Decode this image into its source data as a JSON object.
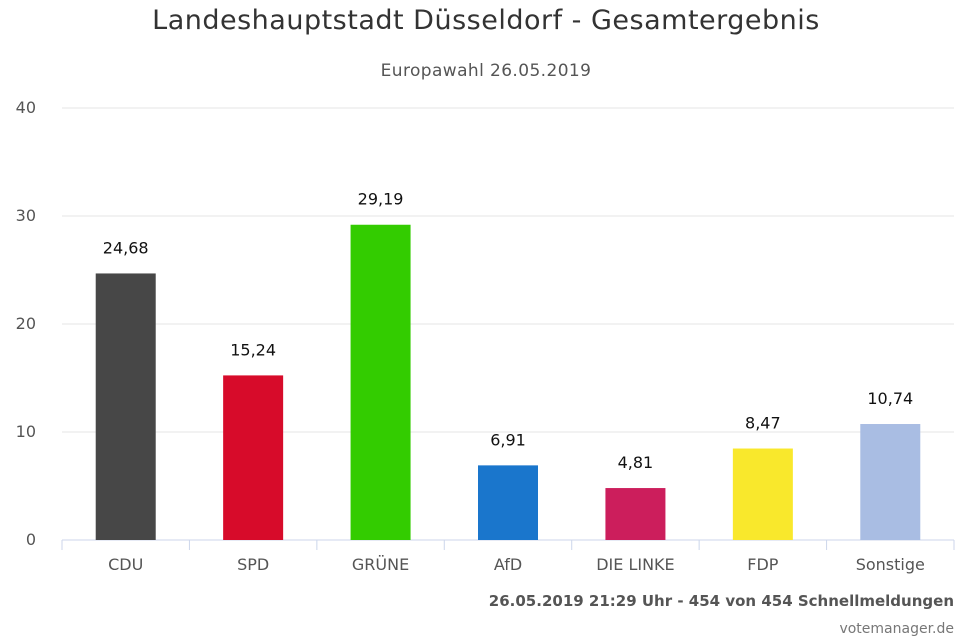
{
  "chart_data": {
    "type": "bar",
    "title": "Landeshauptstadt Düsseldorf - Gesamtergebnis",
    "subtitle": "Europawahl 26.05.2019",
    "categories": [
      "CDU",
      "SPD",
      "GRÜNE",
      "AfD",
      "DIE LINKE",
      "FDP",
      "Sonstige"
    ],
    "values": [
      24.68,
      15.24,
      29.19,
      6.91,
      4.81,
      8.47,
      10.74
    ],
    "value_labels": [
      "24,68",
      "15,24",
      "29,19",
      "6,91",
      "4,81",
      "8,47",
      "10,74"
    ],
    "colors": [
      "#474747",
      "#d70b2a",
      "#33cc00",
      "#1a76cc",
      "#cc1e5c",
      "#f9e82c",
      "#a9bde3"
    ],
    "ylim": [
      0,
      40
    ],
    "yticks": [
      "0",
      "10",
      "20",
      "30",
      "40"
    ],
    "ytick_values": [
      0,
      10,
      20,
      30,
      40
    ],
    "grid": true,
    "xlabel": "",
    "ylabel": ""
  },
  "footer": {
    "status": "26.05.2019 21:29 Uhr - 454 von 454 Schnellmeldungen",
    "credit": "votemanager.de"
  }
}
